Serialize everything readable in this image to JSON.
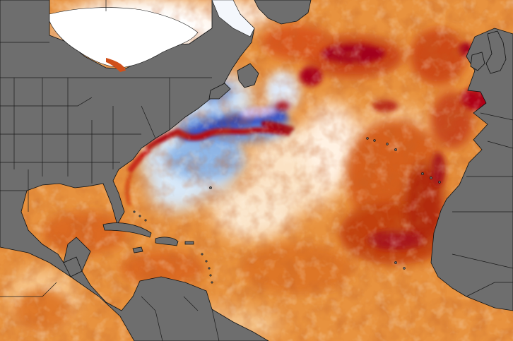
{
  "map": {
    "kind": "sea-surface-temperature-anomaly",
    "region": "North Atlantic",
    "has_labels": false,
    "colors": {
      "land": "#6e6e6e",
      "border": "#1a1a1a",
      "coastline": "#101010",
      "warm_extreme": "#a3001a",
      "warm_strong": "#cc4a0c",
      "warm": "#e58a36",
      "warm_light": "#f4bb77",
      "neutral": "#fdf3e4",
      "cool_light": "#c6def5",
      "cool": "#7ba7e2",
      "cool_strong": "#3b58c8",
      "cool_extreme": "#d8c2f2"
    }
  }
}
